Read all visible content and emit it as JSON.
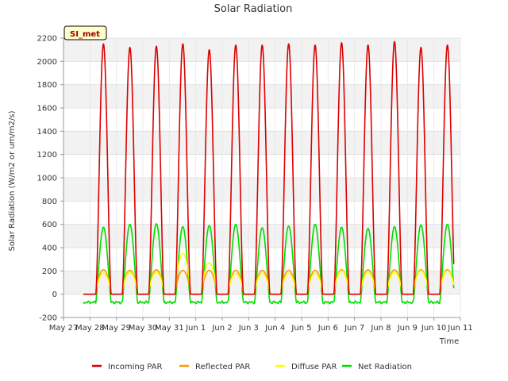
{
  "chart_data": {
    "type": "line",
    "title": "Solar Radiation",
    "xlabel": "Time",
    "ylabel": "Solar Radiation (W/m2 or um/m2/s)",
    "badge": "SI_met",
    "ylim": [
      -200,
      2200
    ],
    "yticks": [
      -200,
      0,
      200,
      400,
      600,
      800,
      1000,
      1200,
      1400,
      1600,
      1800,
      2000,
      2200
    ],
    "xlim_days": [
      0,
      15
    ],
    "xticks": [
      {
        "day": 0,
        "label": "May 27"
      },
      {
        "day": 1,
        "label": "May 28"
      },
      {
        "day": 2,
        "label": "May 29"
      },
      {
        "day": 3,
        "label": "May 30"
      },
      {
        "day": 4,
        "label": "May 31"
      },
      {
        "day": 5,
        "label": "Jun 1"
      },
      {
        "day": 6,
        "label": "Jun 2"
      },
      {
        "day": 7,
        "label": "Jun 3"
      },
      {
        "day": 8,
        "label": "Jun 4"
      },
      {
        "day": 9,
        "label": "Jun 5"
      },
      {
        "day": 10,
        "label": "Jun 6"
      },
      {
        "day": 11,
        "label": "Jun 7"
      },
      {
        "day": 12,
        "label": "Jun 8"
      },
      {
        "day": 13,
        "label": "Jun 9"
      },
      {
        "day": 14,
        "label": "Jun 10"
      },
      {
        "day": 15,
        "label": "Jun 11"
      }
    ],
    "days": [
      "May 28",
      "May 29",
      "May 30",
      "May 31",
      "Jun 1",
      "Jun 2",
      "Jun 3",
      "Jun 4",
      "Jun 5",
      "Jun 6",
      "Jun 7",
      "Jun 8",
      "Jun 9",
      "Jun 10"
    ],
    "series": [
      {
        "name": "Incoming PAR",
        "color": "#dd0000",
        "daily_peaks": [
          2150,
          2120,
          2130,
          2150,
          2100,
          2140,
          2140,
          2150,
          2140,
          2160,
          2140,
          2170,
          2120,
          2140
        ],
        "night_value": 0
      },
      {
        "name": "Reflected PAR",
        "color": "#ff9900",
        "daily_peaks": [
          210,
          205,
          210,
          205,
          205,
          205,
          205,
          205,
          205,
          210,
          210,
          210,
          210,
          210
        ],
        "night_value": 0
      },
      {
        "name": "Diffuse PAR",
        "color": "#ffff00",
        "daily_peaks": [
          180,
          190,
          190,
          350,
          270,
          180,
          180,
          180,
          180,
          200,
          190,
          190,
          200,
          200
        ],
        "night_value": 0
      },
      {
        "name": "Net Radiation",
        "color": "#00dd00",
        "daily_peaks": [
          575,
          600,
          605,
          580,
          590,
          600,
          570,
          585,
          600,
          575,
          565,
          580,
          595,
          600
        ],
        "night_value": -70
      }
    ],
    "legend_position": "bottom"
  }
}
